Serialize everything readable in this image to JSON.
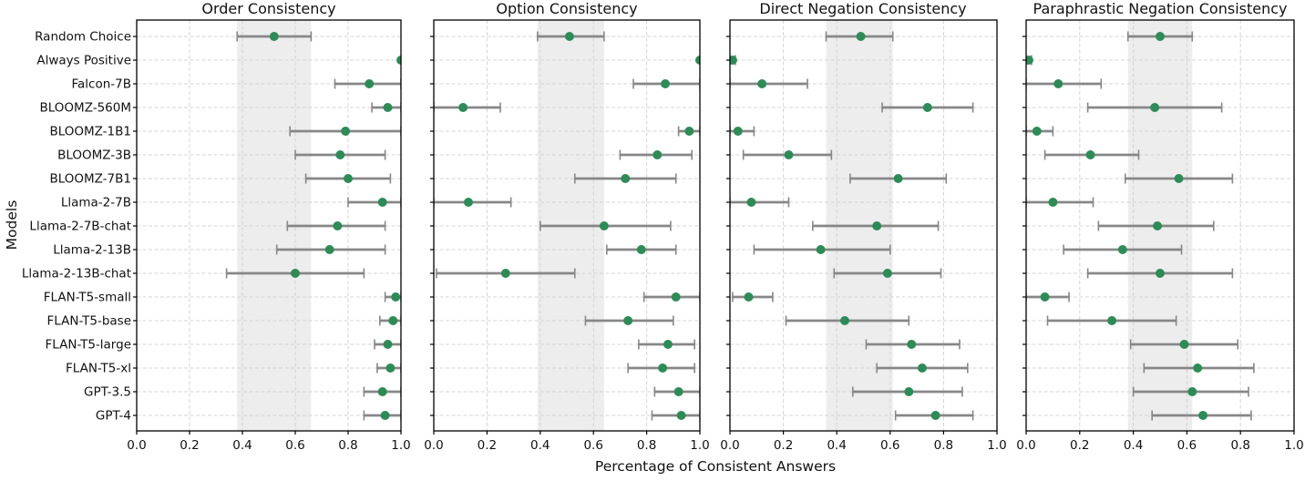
{
  "chart_data": {
    "type": "scatter",
    "subtype": "horizontal dot plot with 95% error bars, 4 panels sharing y axis",
    "xlabel": "Percentage of Consistent Answers",
    "ylabel": "Models",
    "xlim": [
      0.0,
      1.0
    ],
    "xticks": [
      0.0,
      0.2,
      0.4,
      0.6,
      0.8,
      1.0
    ],
    "grid": true,
    "marker_color": "#2e8b57",
    "errorbar_color": "#878787",
    "band_color": "#ededed",
    "categories": [
      "Random Choice",
      "Always Positive",
      "Falcon-7B",
      "BLOOMZ-560M",
      "BLOOMZ-1B1",
      "BLOOMZ-3B",
      "BLOOMZ-7B1",
      "Llama-2-7B",
      "Llama-2-7B-chat",
      "Llama-2-13B",
      "Llama-2-13B-chat",
      "FLAN-T5-small",
      "FLAN-T5-base",
      "FLAN-T5-large",
      "FLAN-T5-xl",
      "GPT-3.5",
      "GPT-4"
    ],
    "point_format": "[value, ci_low, ci_high]",
    "panels": [
      {
        "title": "Order Consistency",
        "band": [
          0.38,
          0.66
        ],
        "points": [
          [
            0.52,
            0.38,
            0.66
          ],
          [
            1.0,
            1.0,
            1.0
          ],
          [
            0.88,
            0.75,
            1.0
          ],
          [
            0.95,
            0.89,
            1.0
          ],
          [
            0.79,
            0.58,
            1.0
          ],
          [
            0.77,
            0.6,
            0.94
          ],
          [
            0.8,
            0.64,
            0.96
          ],
          [
            0.93,
            0.8,
            1.0
          ],
          [
            0.76,
            0.57,
            0.94
          ],
          [
            0.73,
            0.53,
            0.94
          ],
          [
            0.6,
            0.34,
            0.86
          ],
          [
            0.98,
            0.94,
            1.0
          ],
          [
            0.97,
            0.92,
            1.0
          ],
          [
            0.95,
            0.9,
            1.0
          ],
          [
            0.96,
            0.91,
            1.0
          ],
          [
            0.93,
            0.86,
            1.0
          ],
          [
            0.94,
            0.86,
            1.0
          ]
        ]
      },
      {
        "title": "Option Consistency",
        "band": [
          0.39,
          0.64
        ],
        "points": [
          [
            0.51,
            0.39,
            0.64
          ],
          [
            1.0,
            1.0,
            1.0
          ],
          [
            0.87,
            0.75,
            1.0
          ],
          [
            0.11,
            0.0,
            0.25
          ],
          [
            0.96,
            0.92,
            1.0
          ],
          [
            0.84,
            0.7,
            0.97
          ],
          [
            0.72,
            0.53,
            0.91
          ],
          [
            0.13,
            0.0,
            0.29
          ],
          [
            0.64,
            0.4,
            0.89
          ],
          [
            0.78,
            0.65,
            0.91
          ],
          [
            0.27,
            0.01,
            0.53
          ],
          [
            0.91,
            0.79,
            1.0
          ],
          [
            0.73,
            0.57,
            0.9
          ],
          [
            0.88,
            0.77,
            0.98
          ],
          [
            0.86,
            0.73,
            0.98
          ],
          [
            0.92,
            0.83,
            1.0
          ],
          [
            0.93,
            0.82,
            1.0
          ]
        ]
      },
      {
        "title": "Direct Negation Consistency",
        "band": [
          0.36,
          0.61
        ],
        "points": [
          [
            0.49,
            0.36,
            0.61
          ],
          [
            0.01,
            0.0,
            0.02
          ],
          [
            0.12,
            0.0,
            0.29
          ],
          [
            0.74,
            0.57,
            0.91
          ],
          [
            0.03,
            0.0,
            0.09
          ],
          [
            0.22,
            0.05,
            0.38
          ],
          [
            0.63,
            0.45,
            0.81
          ],
          [
            0.08,
            0.0,
            0.22
          ],
          [
            0.55,
            0.31,
            0.78
          ],
          [
            0.34,
            0.09,
            0.6
          ],
          [
            0.59,
            0.39,
            0.79
          ],
          [
            0.07,
            0.01,
            0.16
          ],
          [
            0.43,
            0.21,
            0.67
          ],
          [
            0.68,
            0.51,
            0.86
          ],
          [
            0.72,
            0.55,
            0.89
          ],
          [
            0.67,
            0.46,
            0.87
          ],
          [
            0.77,
            0.62,
            0.91
          ]
        ]
      },
      {
        "title": "Paraphrastic Negation Consistency",
        "band": [
          0.38,
          0.62
        ],
        "points": [
          [
            0.5,
            0.38,
            0.62
          ],
          [
            0.01,
            0.0,
            0.02
          ],
          [
            0.12,
            0.0,
            0.28
          ],
          [
            0.48,
            0.23,
            0.73
          ],
          [
            0.04,
            0.0,
            0.1
          ],
          [
            0.24,
            0.07,
            0.42
          ],
          [
            0.57,
            0.37,
            0.77
          ],
          [
            0.1,
            0.0,
            0.25
          ],
          [
            0.49,
            0.27,
            0.7
          ],
          [
            0.36,
            0.14,
            0.58
          ],
          [
            0.5,
            0.23,
            0.77
          ],
          [
            0.07,
            0.0,
            0.16
          ],
          [
            0.32,
            0.08,
            0.56
          ],
          [
            0.59,
            0.39,
            0.79
          ],
          [
            0.64,
            0.44,
            0.85
          ],
          [
            0.62,
            0.4,
            0.83
          ],
          [
            0.66,
            0.47,
            0.84
          ]
        ]
      }
    ]
  }
}
